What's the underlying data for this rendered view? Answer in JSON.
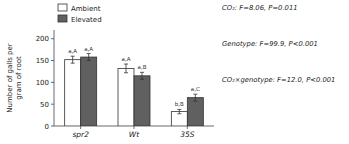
{
  "chart_data": {
    "type": "bar",
    "categories": [
      "spr2",
      "Wt",
      "35S"
    ],
    "series": [
      {
        "name": "Ambient",
        "color": "#ffffff",
        "values": [
          152,
          132,
          33
        ],
        "errors": [
          8,
          10,
          5
        ],
        "annotations": [
          "a,A",
          "a,A",
          "b,B"
        ]
      },
      {
        "name": "Elevated",
        "color": "#606060",
        "values": [
          158,
          115,
          65
        ],
        "errors": [
          8,
          8,
          8
        ],
        "annotations": [
          "a,A",
          "a,B",
          "a,C"
        ]
      }
    ],
    "ylabel": "Number of galls per\ngram of root",
    "ylim": [
      0,
      220
    ],
    "yticks": [
      0,
      50,
      100,
      150,
      200
    ],
    "legend": "upper left",
    "annotations": [
      "CO₂: F=8.06, P=0.011",
      "Genotype: F=99.9, P<0.001",
      "CO₂×genotype: F=12.0, P<0.001"
    ]
  }
}
